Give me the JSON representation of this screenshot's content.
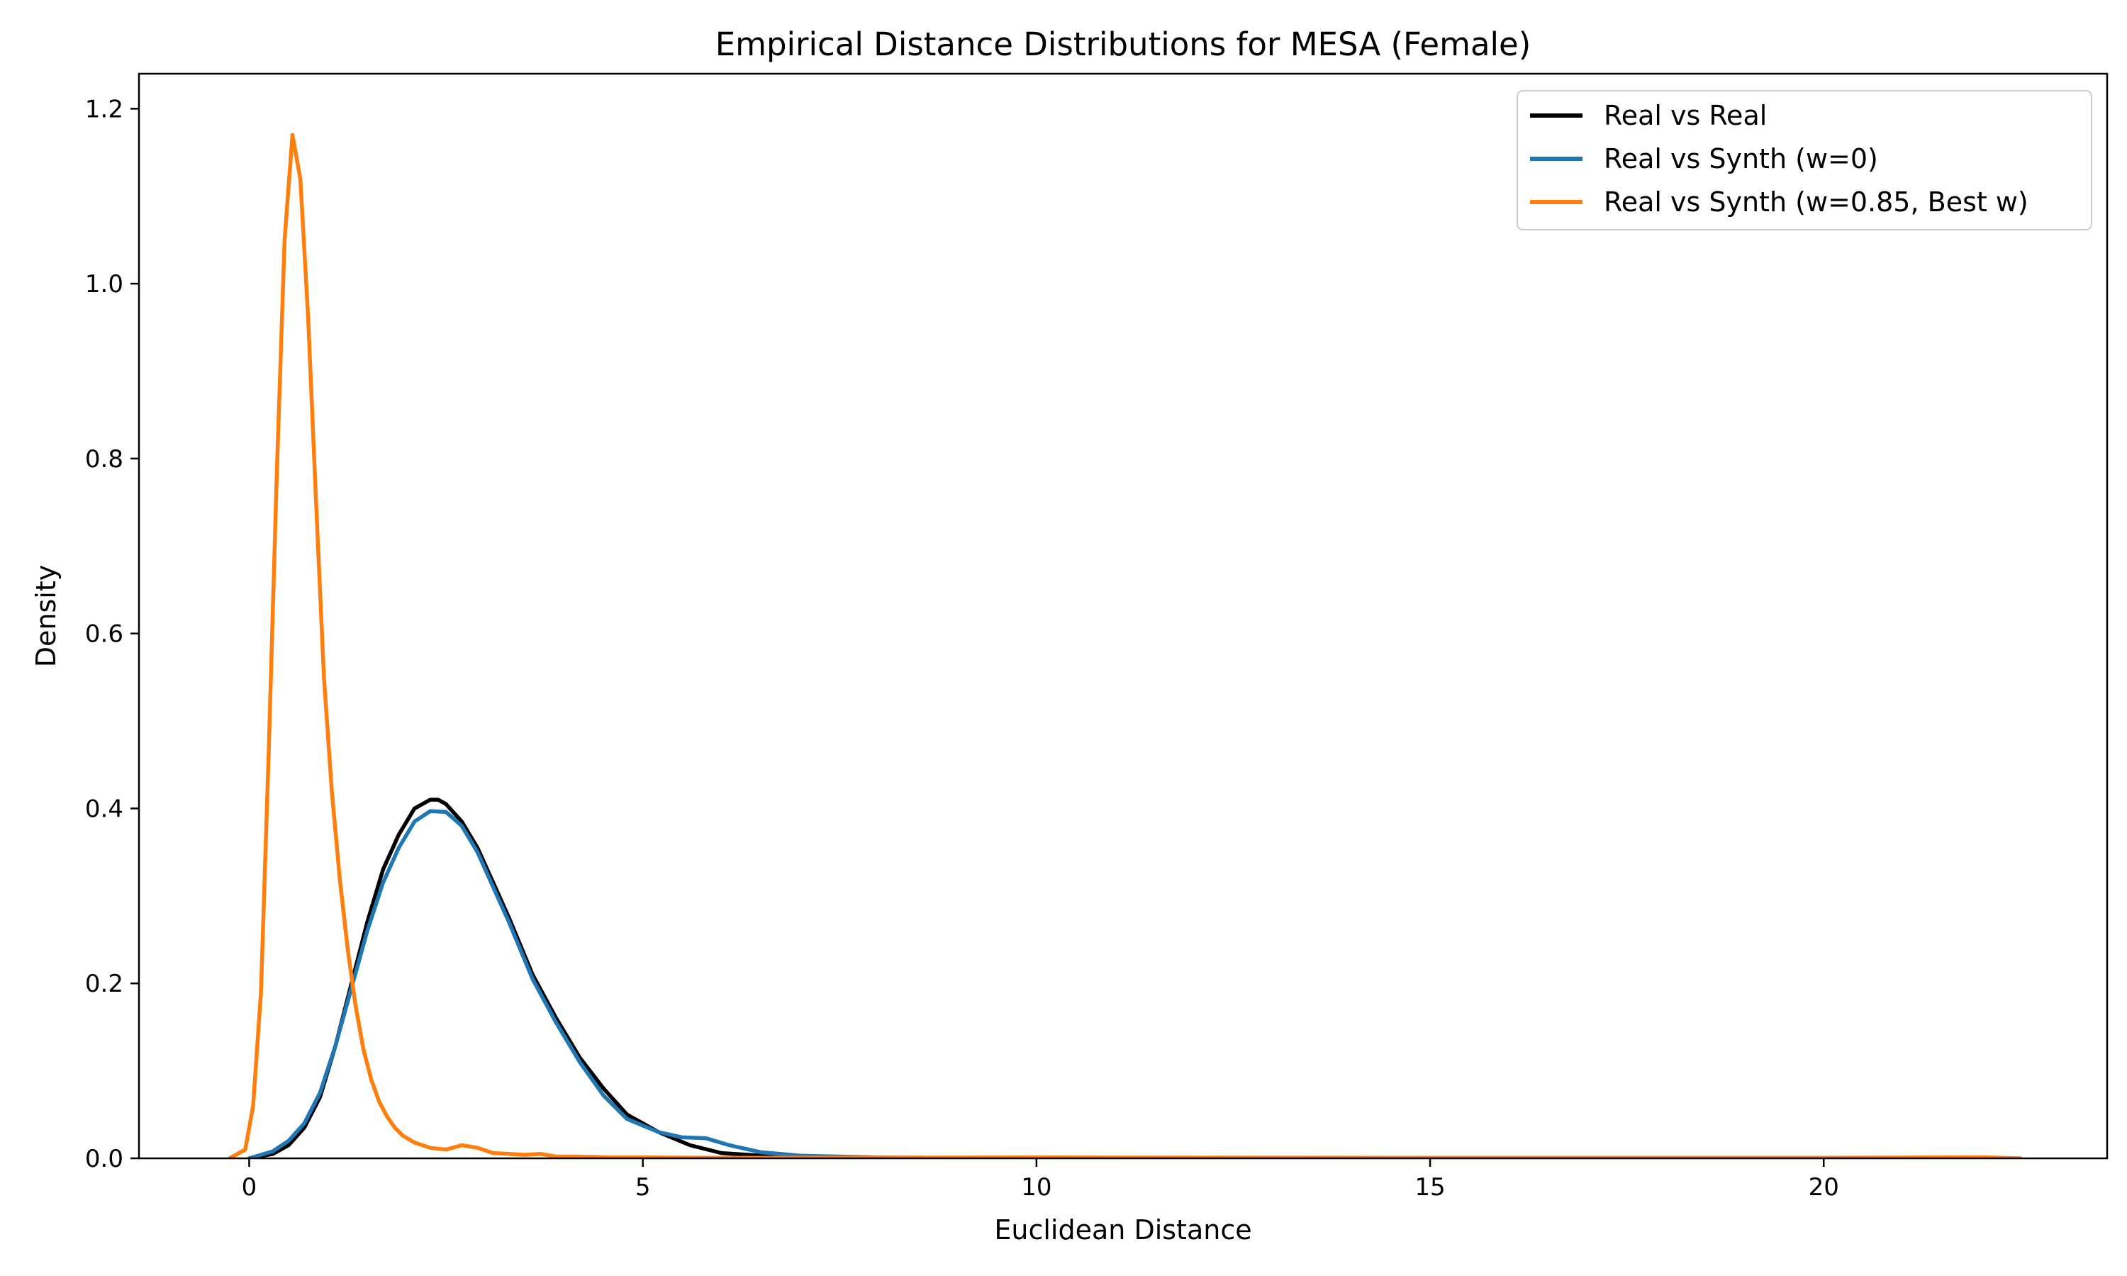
{
  "chart_data": {
    "type": "line",
    "title": "Empirical Distance Distributions for MESA (Female)",
    "xlabel": "Euclidean Distance",
    "ylabel": "Density",
    "xlim": [
      -1.4,
      23.6
    ],
    "ylim": [
      0,
      1.24
    ],
    "xticks": [
      0,
      5,
      10,
      15,
      20
    ],
    "xtick_labels": [
      "0",
      "5",
      "10",
      "15",
      "20"
    ],
    "yticks": [
      0,
      0.2,
      0.4,
      0.6,
      0.8,
      1.0,
      1.2
    ],
    "ytick_labels": [
      "0.0",
      "0.2",
      "0.4",
      "0.6",
      "0.8",
      "1.0",
      "1.2"
    ],
    "grid": false,
    "legend_position": "top-right",
    "series": [
      {
        "name": "Real vs Real",
        "color": "#000000",
        "x": [
          0,
          0.3,
          0.5,
          0.7,
          0.9,
          1.1,
          1.3,
          1.5,
          1.7,
          1.9,
          2.1,
          2.3,
          2.4,
          2.5,
          2.7,
          2.9,
          3.1,
          3.3,
          3.6,
          3.9,
          4.2,
          4.5,
          4.8,
          5.2,
          5.6,
          6.0,
          6.5,
          7.0,
          8.0,
          9.0,
          10.0
        ],
        "y": [
          0.0,
          0.005,
          0.015,
          0.035,
          0.07,
          0.13,
          0.2,
          0.27,
          0.33,
          0.37,
          0.4,
          0.41,
          0.41,
          0.405,
          0.385,
          0.355,
          0.315,
          0.275,
          0.21,
          0.16,
          0.115,
          0.08,
          0.05,
          0.03,
          0.015,
          0.006,
          0.003,
          0.001,
          0.0005,
          0.0002,
          0.0
        ]
      },
      {
        "name": "Real vs Synth (w=0)",
        "color": "#1f77b4",
        "x": [
          0,
          0.3,
          0.5,
          0.7,
          0.9,
          1.1,
          1.3,
          1.5,
          1.7,
          1.9,
          2.1,
          2.3,
          2.5,
          2.7,
          2.9,
          3.1,
          3.3,
          3.6,
          3.9,
          4.2,
          4.5,
          4.8,
          5.2,
          5.5,
          5.8,
          6.1,
          6.5,
          7.0,
          8.0,
          9.0,
          10.0
        ],
        "y": [
          0.0,
          0.008,
          0.02,
          0.04,
          0.075,
          0.13,
          0.195,
          0.26,
          0.315,
          0.355,
          0.385,
          0.397,
          0.396,
          0.38,
          0.35,
          0.31,
          0.27,
          0.205,
          0.155,
          0.11,
          0.072,
          0.045,
          0.03,
          0.024,
          0.023,
          0.015,
          0.007,
          0.003,
          0.001,
          0.0005,
          0.0
        ]
      },
      {
        "name": "Real vs Synth (w=0.85, Best w)",
        "color": "#ff7f0e",
        "x": [
          -0.25,
          -0.05,
          0.05,
          0.15,
          0.25,
          0.35,
          0.45,
          0.55,
          0.65,
          0.75,
          0.85,
          0.95,
          1.05,
          1.15,
          1.25,
          1.35,
          1.45,
          1.55,
          1.65,
          1.75,
          1.85,
          1.95,
          2.1,
          2.3,
          2.5,
          2.7,
          2.9,
          3.1,
          3.3,
          3.5,
          3.7,
          3.9,
          4.2,
          4.6,
          5.0,
          6.0,
          8.0,
          10.0,
          15.0,
          20.0,
          22.0,
          22.5
        ],
        "y": [
          0.0,
          0.01,
          0.06,
          0.19,
          0.47,
          0.78,
          1.05,
          1.17,
          1.12,
          0.96,
          0.75,
          0.55,
          0.42,
          0.32,
          0.24,
          0.175,
          0.125,
          0.09,
          0.065,
          0.048,
          0.035,
          0.026,
          0.018,
          0.012,
          0.01,
          0.015,
          0.012,
          0.006,
          0.005,
          0.004,
          0.005,
          0.002,
          0.002,
          0.001,
          0.001,
          0.0005,
          0.0008,
          0.001,
          0.0005,
          0.0005,
          0.0012,
          0.0
        ]
      }
    ]
  }
}
